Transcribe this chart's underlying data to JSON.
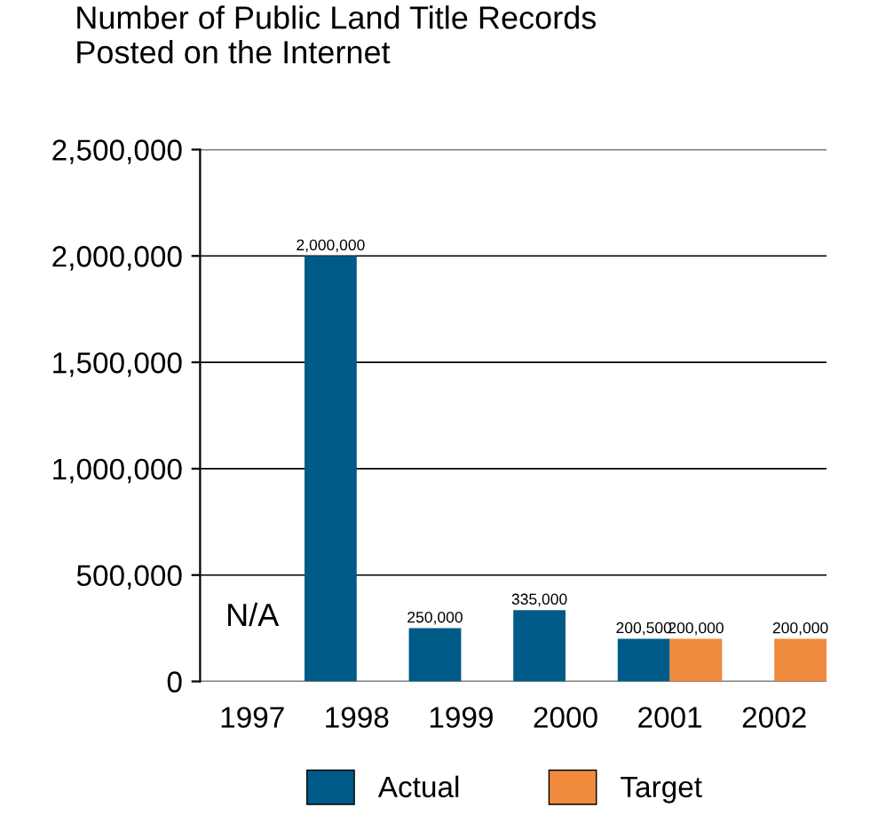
{
  "chart_data": {
    "type": "bar",
    "title": "Number of Public Land Title Records\nPosted on the Internet",
    "categories": [
      "1997",
      "1998",
      "1999",
      "2000",
      "2001",
      "2002"
    ],
    "series": [
      {
        "name": "Actual",
        "color": "#005a87",
        "values": [
          null,
          2000000,
          250000,
          335000,
          200500,
          null
        ],
        "value_labels": [
          null,
          "2,000,000",
          "250,000",
          "335,000",
          "200,500",
          null
        ]
      },
      {
        "name": "Target",
        "color": "#f08a3c",
        "values": [
          null,
          null,
          null,
          null,
          200000,
          200000
        ],
        "value_labels": [
          null,
          null,
          null,
          null,
          "200,000",
          "200,000"
        ]
      }
    ],
    "annotations": [
      "N/A"
    ],
    "ylim": [
      0,
      2500000
    ],
    "yticks": [
      {
        "value": 0,
        "label": "0"
      },
      {
        "value": 500000,
        "label": "500,000"
      },
      {
        "value": 1000000,
        "label": "1,000,000"
      },
      {
        "value": 1500000,
        "label": "1,500,000"
      },
      {
        "value": 2000000,
        "label": "2,000,000"
      },
      {
        "value": 2500000,
        "label": "2,500,000"
      }
    ],
    "grid": "y",
    "legend": "bottom"
  }
}
